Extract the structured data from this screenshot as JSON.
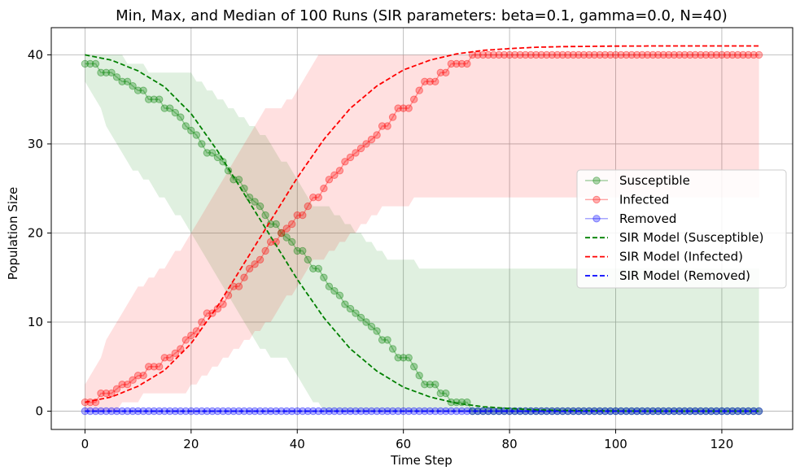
{
  "chart_data": {
    "type": "line",
    "title": "Min, Max, and Median of 100 Runs (SIR parameters: beta=0.1, gamma=0.0, N=40)",
    "xlabel": "Time Step",
    "ylabel": "Population Size",
    "xlim": [
      -6.35,
      133.35
    ],
    "ylim": [
      -2.05,
      43.05
    ],
    "xticks": [
      0,
      20,
      40,
      60,
      80,
      100,
      120
    ],
    "yticks": [
      0,
      10,
      20,
      30,
      40
    ],
    "grid": true,
    "legend_position": "center-right",
    "colors": {
      "susceptible": "#008000",
      "infected": "#ff0000",
      "removed": "#0000ff"
    },
    "series": [
      {
        "name": "Susceptible",
        "style": "markers",
        "color": "#008000",
        "x": [
          0,
          1,
          2,
          3,
          4,
          5,
          6,
          7,
          8,
          9,
          10,
          11,
          12,
          13,
          14,
          15,
          16,
          17,
          18,
          19,
          20,
          21,
          22,
          23,
          24,
          25,
          26,
          27,
          28,
          29,
          30,
          31,
          32,
          33,
          34,
          35,
          36,
          37,
          38,
          39,
          40,
          41,
          42,
          43,
          44,
          45,
          46,
          47,
          48,
          49,
          50,
          51,
          52,
          53,
          54,
          55,
          56,
          57,
          58,
          59,
          60,
          61,
          62,
          63,
          64,
          65,
          66,
          67,
          68,
          69,
          70,
          71,
          72,
          73,
          74,
          75,
          76,
          77,
          78,
          79,
          80,
          81,
          82,
          83,
          84,
          85,
          86,
          87,
          88,
          89,
          90,
          91,
          92,
          93,
          94,
          95,
          96,
          97,
          98,
          99,
          100,
          101,
          102,
          103,
          104,
          105,
          106,
          107,
          108,
          109,
          110,
          111,
          112,
          113,
          114,
          115,
          116,
          117,
          118,
          119,
          120,
          121,
          122,
          123,
          124,
          125,
          126,
          127
        ],
        "values": [
          39,
          39,
          39,
          38,
          38,
          38,
          37.5,
          37,
          37,
          36.5,
          36,
          36,
          35,
          35,
          35,
          34,
          34,
          33.5,
          33,
          32,
          31.5,
          31,
          30,
          29,
          29,
          28.5,
          28,
          27,
          26,
          26,
          25,
          24,
          23.5,
          23,
          22,
          21,
          21,
          20,
          19.5,
          19,
          18,
          18,
          17,
          16,
          16,
          15,
          14,
          13.5,
          13,
          12,
          11.5,
          11,
          10.5,
          10,
          9.5,
          9,
          8,
          8,
          7,
          6,
          6,
          6,
          5,
          4,
          3,
          3,
          3,
          2,
          2,
          1,
          1,
          1,
          1,
          0,
          0,
          0,
          0,
          0,
          0,
          0,
          0,
          0,
          0,
          0,
          0,
          0,
          0,
          0,
          0,
          0,
          0,
          0,
          0,
          0,
          0,
          0,
          0,
          0,
          0,
          0,
          0,
          0,
          0,
          0,
          0,
          0,
          0,
          0,
          0,
          0,
          0,
          0,
          0,
          0,
          0,
          0,
          0,
          0,
          0,
          0,
          0,
          0,
          0,
          0,
          0,
          0,
          0,
          0
        ],
        "band_x": [
          0,
          2,
          5,
          9,
          13,
          16,
          19,
          21,
          23,
          25,
          27,
          29,
          31,
          33,
          35,
          37,
          39,
          41,
          43,
          45,
          47,
          49,
          51,
          53,
          55,
          57,
          59,
          61,
          63,
          65,
          67,
          69,
          71,
          73,
          75,
          80,
          85,
          90,
          127
        ],
        "band_min": [
          37,
          35,
          31,
          27,
          25,
          23,
          21,
          19,
          17,
          15,
          13,
          11,
          9,
          7,
          6,
          6,
          5,
          3,
          1,
          0,
          0,
          0,
          0,
          0,
          0,
          0,
          0,
          0,
          0,
          0,
          0,
          0,
          0,
          0,
          0,
          0,
          0,
          0,
          0
        ],
        "band_max": [
          40,
          40,
          40,
          39,
          38,
          38,
          38,
          37,
          36,
          35,
          34,
          33,
          32,
          31,
          30,
          28,
          27,
          25,
          23,
          23,
          22,
          21,
          20,
          19,
          18,
          17,
          17,
          17,
          16,
          16,
          16,
          16,
          16,
          16,
          16,
          16,
          16,
          16,
          16
        ]
      },
      {
        "name": "Infected",
        "style": "markers",
        "color": "#ff0000",
        "x": [
          0,
          1,
          2,
          3,
          4,
          5,
          6,
          7,
          8,
          9,
          10,
          11,
          12,
          13,
          14,
          15,
          16,
          17,
          18,
          19,
          20,
          21,
          22,
          23,
          24,
          25,
          26,
          27,
          28,
          29,
          30,
          31,
          32,
          33,
          34,
          35,
          36,
          37,
          38,
          39,
          40,
          41,
          42,
          43,
          44,
          45,
          46,
          47,
          48,
          49,
          50,
          51,
          52,
          53,
          54,
          55,
          56,
          57,
          58,
          59,
          60,
          61,
          62,
          63,
          64,
          65,
          66,
          67,
          68,
          69,
          70,
          71,
          72,
          73,
          74,
          75,
          76,
          77,
          78,
          79,
          80,
          81,
          82,
          83,
          84,
          85,
          86,
          87,
          88,
          89,
          90,
          91,
          92,
          93,
          94,
          95,
          96,
          97,
          98,
          99,
          100,
          101,
          102,
          103,
          104,
          105,
          106,
          107,
          108,
          109,
          110,
          111,
          112,
          113,
          114,
          115,
          116,
          117,
          118,
          119,
          120,
          121,
          122,
          123,
          124,
          125,
          126,
          127
        ],
        "values": [
          1,
          1,
          1,
          2,
          2,
          2,
          2.5,
          3,
          3,
          3.5,
          4,
          4,
          5,
          5,
          5,
          6,
          6,
          6.5,
          7,
          8,
          8.5,
          9,
          10,
          11,
          11,
          11.5,
          12,
          13,
          14,
          14,
          15,
          16,
          16.5,
          17,
          18,
          19,
          19,
          20,
          20.5,
          21,
          22,
          22,
          23,
          24,
          24,
          25,
          26,
          26.5,
          27,
          28,
          28.5,
          29,
          29.5,
          30,
          30.5,
          31,
          32,
          32,
          33,
          34,
          34,
          34,
          35,
          36,
          37,
          37,
          37,
          38,
          38,
          39,
          39,
          39,
          39,
          40,
          40,
          40,
          40,
          40,
          40,
          40,
          40,
          40,
          40,
          40,
          40,
          40,
          40,
          40,
          40,
          40,
          40,
          40,
          40,
          40,
          40,
          40,
          40,
          40,
          40,
          40,
          40,
          40,
          40,
          40,
          40,
          40,
          40,
          40,
          40,
          40,
          40,
          40,
          40,
          40,
          40,
          40,
          40,
          40,
          40,
          40,
          40,
          40,
          40,
          40,
          40,
          40,
          40,
          40
        ],
        "band_x": [
          0,
          2,
          5,
          9,
          13,
          16,
          19,
          21,
          23,
          25,
          27,
          29,
          31,
          33,
          35,
          37,
          39,
          41,
          43,
          45,
          47,
          49,
          51,
          53,
          55,
          57,
          59,
          61,
          63,
          65,
          67,
          69,
          71,
          73,
          75,
          80,
          85,
          90,
          127
        ],
        "band_min": [
          0,
          0,
          0,
          1,
          2,
          2,
          2,
          3,
          4,
          5,
          6,
          7,
          8,
          9,
          10,
          12,
          13,
          15,
          17,
          17,
          18,
          19,
          20,
          21,
          22,
          23,
          23,
          23,
          24,
          24,
          24,
          24,
          24,
          24,
          24,
          24,
          24,
          24,
          24
        ],
        "band_max": [
          3,
          5,
          9,
          13,
          15,
          17,
          19,
          21,
          23,
          25,
          27,
          29,
          31,
          33,
          34,
          34,
          35,
          37,
          39,
          40,
          40,
          40,
          40,
          40,
          40,
          40,
          40,
          40,
          40,
          40,
          40,
          40,
          40,
          40,
          40,
          40,
          40,
          40,
          40
        ]
      },
      {
        "name": "Removed",
        "style": "markers",
        "color": "#0000ff",
        "x_start": 0,
        "x_end": 127,
        "constant_value": 0
      },
      {
        "name": "SIR Model (Susceptible)",
        "style": "dashed",
        "color": "#008000",
        "x": [
          0,
          5,
          10,
          15,
          20,
          25,
          30,
          35,
          40,
          45,
          50,
          55,
          60,
          65,
          70,
          75,
          80,
          85,
          90,
          100,
          110,
          120,
          127
        ],
        "values": [
          40,
          39.4,
          38.2,
          36.4,
          33.4,
          29.2,
          24.4,
          19.6,
          14.8,
          10.5,
          7.0,
          4.5,
          2.7,
          1.6,
          0.9,
          0.5,
          0.3,
          0.15,
          0.08,
          0.02,
          0.0,
          0.0,
          0.0
        ]
      },
      {
        "name": "SIR Model (Infected)",
        "style": "dashed",
        "color": "#ff0000",
        "x": [
          0,
          5,
          10,
          15,
          20,
          25,
          30,
          35,
          40,
          45,
          50,
          55,
          60,
          65,
          70,
          75,
          80,
          85,
          90,
          100,
          110,
          120,
          127
        ],
        "values": [
          1,
          1.6,
          2.8,
          4.6,
          7.6,
          11.8,
          16.6,
          21.4,
          26.2,
          30.5,
          34.0,
          36.5,
          38.3,
          39.4,
          40.1,
          40.5,
          40.7,
          40.85,
          40.92,
          40.98,
          41.0,
          41.0,
          41.0
        ]
      },
      {
        "name": "SIR Model (Removed)",
        "style": "dashed",
        "color": "#0000ff",
        "x": [
          0,
          127
        ],
        "values": [
          0,
          0
        ]
      }
    ]
  }
}
